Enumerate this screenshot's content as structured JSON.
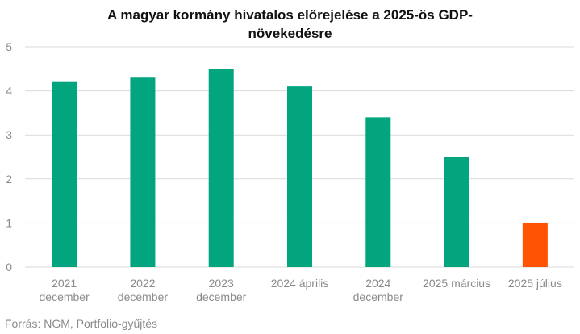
{
  "chart_data": {
    "type": "bar",
    "title_lines": [
      "A magyar kormány hivatalos előrejelése a 2025-ös GDP-",
      "növekedésre"
    ],
    "categories": [
      [
        "2021",
        "december"
      ],
      [
        "2022",
        "december"
      ],
      [
        "2023",
        "december"
      ],
      [
        "2024 április"
      ],
      [
        "2024",
        "december"
      ],
      [
        "2025 március"
      ],
      [
        "2025 július"
      ]
    ],
    "values": [
      4.2,
      4.3,
      4.5,
      4.1,
      3.4,
      2.5,
      1.0
    ],
    "bar_colors": [
      "#03a57f",
      "#03a57f",
      "#03a57f",
      "#03a57f",
      "#03a57f",
      "#03a57f",
      "#ff5202"
    ],
    "ylim": [
      0,
      5
    ],
    "yticks": [
      0,
      1,
      2,
      3,
      4,
      5
    ],
    "xlabel": "",
    "ylabel": "",
    "grid": true,
    "grid_color": "#d9d9d9"
  },
  "source": "Forrás: NGM, Portfolio-gyűjtés"
}
